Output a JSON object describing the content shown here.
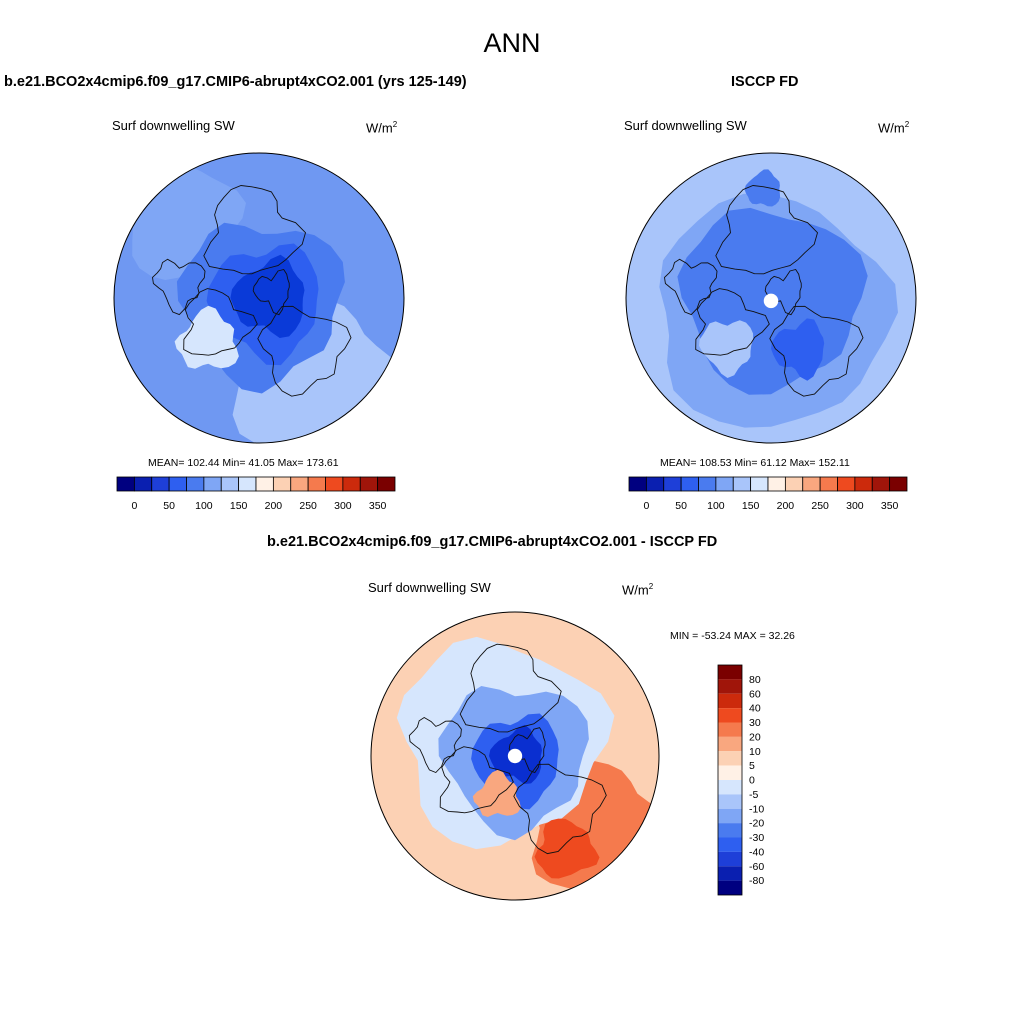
{
  "title": "ANN",
  "units_base": "W/m",
  "units_exp": "2",
  "panels": {
    "left": {
      "title": "b.e21.BCO2x4cmip6.f09_g17.CMIP6-abrupt4xCO2.001 (yrs 125-149)",
      "var_label": "Surf downwelling SW",
      "stats_text": "MEAN= 102.44  Min=  41.05  Max= 173.61"
    },
    "right": {
      "title": "ISCCP FD",
      "var_label": "Surf downwelling SW",
      "stats_text": "MEAN= 108.53  Min=  61.12  Max= 152.11"
    },
    "diff": {
      "title": "b.e21.BCO2x4cmip6.f09_g17.CMIP6-abrupt4xCO2.001 - ISCCP FD",
      "var_label": "Surf downwelling SW",
      "stats_text": "MIN = -53.24 MAX =  32.26"
    }
  },
  "chart_data": [
    {
      "type": "heatmap",
      "projection": "north polar stereographic",
      "title": "b.e21.BCO2x4cmip6.f09_g17.CMIP6-abrupt4xCO2.001 (yrs 125-149)",
      "variable": "Surf downwelling SW",
      "units": "W/m2",
      "mean": 102.44,
      "min": 41.05,
      "max": 173.61,
      "colorbar": {
        "orientation": "horizontal",
        "tick_labels": [
          "0",
          "50",
          "100",
          "150",
          "200",
          "250",
          "300",
          "350"
        ],
        "colors": [
          "#000080",
          "#0a1fb0",
          "#1e3fd8",
          "#2e5ff0",
          "#4a7bef",
          "#7fa6f5",
          "#a9c5fa",
          "#d6e6fd",
          "#fff1e6",
          "#fcd1b4",
          "#f9a77f",
          "#f57a4d",
          "#ee4a1f",
          "#cc2a0c",
          "#a0150a",
          "#7a0000"
        ]
      },
      "regions_W_m2": {
        "central_arctic": 60,
        "greenland": 135,
        "subarctic_ocean": 85,
        "mid_latitudes": 125
      }
    },
    {
      "type": "heatmap",
      "projection": "north polar stereographic",
      "title": "ISCCP FD",
      "variable": "Surf downwelling SW",
      "units": "W/m2",
      "mean": 108.53,
      "min": 61.12,
      "max": 152.11,
      "colorbar": {
        "orientation": "horizontal",
        "tick_labels": [
          "0",
          "50",
          "100",
          "150",
          "200",
          "250",
          "300",
          "350"
        ],
        "colors": [
          "#000080",
          "#0a1fb0",
          "#1e3fd8",
          "#2e5ff0",
          "#4a7bef",
          "#7fa6f5",
          "#a9c5fa",
          "#d6e6fd",
          "#fff1e6",
          "#fcd1b4",
          "#f9a77f",
          "#f57a4d",
          "#ee4a1f",
          "#cc2a0c",
          "#a0150a",
          "#7a0000"
        ]
      },
      "regions_W_m2": {
        "central_arctic": 80,
        "greenland": 120,
        "subarctic_ocean": 90,
        "mid_latitudes": 135
      }
    },
    {
      "type": "heatmap",
      "projection": "north polar stereographic",
      "title": "b.e21.BCO2x4cmip6.f09_g17.CMIP6-abrupt4xCO2.001 - ISCCP FD",
      "variable": "Surf downwelling SW",
      "units": "W/m2",
      "min": -53.24,
      "max": 32.26,
      "colorbar": {
        "orientation": "vertical",
        "tick_labels": [
          "80",
          "60",
          "40",
          "30",
          "20",
          "10",
          "5",
          "0",
          "-5",
          "-10",
          "-20",
          "-30",
          "-40",
          "-60",
          "-80"
        ],
        "colors": [
          "#7a0000",
          "#a0150a",
          "#cc2a0c",
          "#ee4a1f",
          "#f57a4d",
          "#f9a77f",
          "#fcd1b4",
          "#fff1e6",
          "#d6e6fd",
          "#a9c5fa",
          "#7fa6f5",
          "#4a7bef",
          "#2e5ff0",
          "#1e3fd8",
          "#0a1fb0",
          "#000080"
        ]
      },
      "regions_W_m2": {
        "central_arctic": -40,
        "greenland": 15,
        "eurasia_pacific": 20,
        "north_atlantic": -12
      }
    }
  ]
}
